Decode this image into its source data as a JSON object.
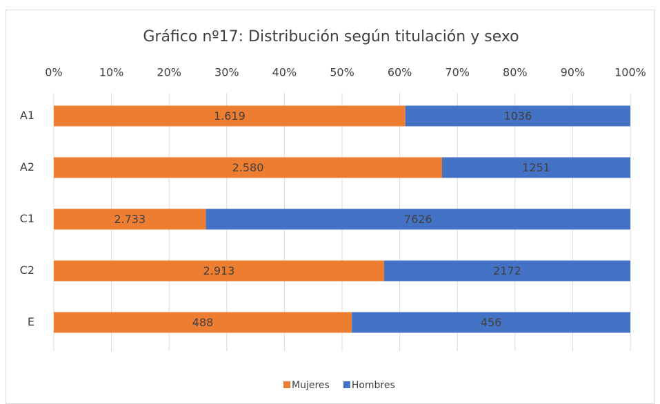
{
  "chart_data": {
    "type": "bar",
    "orientation": "horizontal",
    "stacking": "percent",
    "title": "Gráfico nº17: Distribución según titulación y sexo",
    "categories": [
      "A1",
      "A2",
      "C1",
      "C2",
      "E"
    ],
    "series": [
      {
        "name": "Mujeres",
        "color": "#ed7d31",
        "values": [
          1619,
          2580,
          2733,
          2913,
          488
        ],
        "value_labels": [
          "1.619",
          "2.580",
          "2.733",
          "2.913",
          "488"
        ]
      },
      {
        "name": "Hombres",
        "color": "#4472c4",
        "values": [
          1036,
          1251,
          7626,
          2172,
          456
        ]
      }
    ],
    "xlim": [
      0,
      100
    ],
    "xticks": [
      {
        "value": 0,
        "label": "0%"
      },
      {
        "value": 10,
        "label": "10%"
      },
      {
        "value": 20,
        "label": "20%"
      },
      {
        "value": 30,
        "label": "30%"
      },
      {
        "value": 40,
        "label": "40%"
      },
      {
        "value": 50,
        "label": "50%"
      },
      {
        "value": 60,
        "label": "60%"
      },
      {
        "value": 70,
        "label": "70%"
      },
      {
        "value": 80,
        "label": "80%"
      },
      {
        "value": 90,
        "label": "90%"
      },
      {
        "value": 100,
        "label": "100%"
      }
    ],
    "grid": true,
    "legend": "bottom"
  }
}
